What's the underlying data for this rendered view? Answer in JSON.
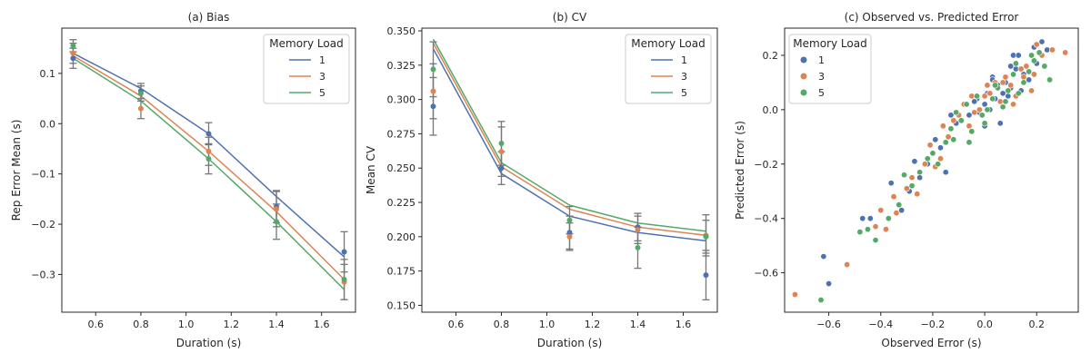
{
  "chart_data": [
    {
      "type": "line",
      "title": "(a) Bias",
      "xlabel": "Duration (s)",
      "ylabel": "Rep Error Mean (s)",
      "xlim": [
        0.45,
        1.75
      ],
      "ylim": [
        -0.375,
        0.19
      ],
      "xticks": [
        0.6,
        0.8,
        1.0,
        1.2,
        1.4,
        1.6
      ],
      "xtick_labels": [
        "0.6",
        "0.8",
        "1.0",
        "1.2",
        "1.4",
        "1.6"
      ],
      "yticks": [
        0.1,
        0.0,
        -0.1,
        -0.2,
        -0.3
      ],
      "ytick_labels": [
        "0.1",
        "0.0",
        "−0.1",
        "−0.2",
        "−0.3"
      ],
      "legend": {
        "title": "Memory Load",
        "position": "top-right"
      },
      "x": [
        0.5,
        0.8,
        1.1,
        1.4,
        1.7
      ],
      "series": [
        {
          "name": "1",
          "color": "#4c72b0",
          "fit": [
            0.14,
            0.07,
            -0.02,
            -0.145,
            -0.265
          ],
          "points": [
            0.13,
            0.065,
            -0.02,
            -0.165,
            -0.255
          ],
          "errors": [
            0.02,
            0.015,
            0.022,
            0.032,
            0.04
          ]
        },
        {
          "name": "3",
          "color": "#dd8452",
          "fit": [
            0.135,
            0.055,
            -0.055,
            -0.175,
            -0.31
          ],
          "points": [
            0.14,
            0.03,
            -0.055,
            -0.17,
            -0.315
          ],
          "errors": [
            0.02,
            0.02,
            0.028,
            0.035,
            0.035
          ]
        },
        {
          "name": "5",
          "color": "#55a868",
          "fit": [
            0.13,
            0.045,
            -0.07,
            -0.195,
            -0.33
          ],
          "points": [
            0.155,
            0.06,
            -0.07,
            -0.195,
            -0.31
          ],
          "errors": [
            0.012,
            0.015,
            0.03,
            0.035,
            0.04
          ]
        }
      ]
    },
    {
      "type": "line",
      "title": "(b) CV",
      "xlabel": "Duration (s)",
      "ylabel": "Mean CV",
      "xlim": [
        0.45,
        1.75
      ],
      "ylim": [
        0.145,
        0.352
      ],
      "xticks": [
        0.6,
        0.8,
        1.0,
        1.2,
        1.4,
        1.6
      ],
      "xtick_labels": [
        "0.6",
        "0.8",
        "1.0",
        "1.2",
        "1.4",
        "1.6"
      ],
      "yticks": [
        0.15,
        0.175,
        0.2,
        0.225,
        0.25,
        0.275,
        0.3,
        0.325,
        0.35
      ],
      "ytick_labels": [
        "0.150",
        "0.175",
        "0.200",
        "0.225",
        "0.250",
        "0.275",
        "0.300",
        "0.325",
        "0.350"
      ],
      "legend": {
        "title": "Memory Load",
        "position": "top-right"
      },
      "x": [
        0.5,
        0.8,
        1.1,
        1.4,
        1.7
      ],
      "series": [
        {
          "name": "1",
          "color": "#4c72b0",
          "fit": [
            0.337,
            0.246,
            0.215,
            0.203,
            0.197
          ],
          "points": [
            0.295,
            0.25,
            0.203,
            0.207,
            0.172
          ],
          "errors": [
            0.021,
            0.012,
            0.012,
            0.01,
            0.018
          ]
        },
        {
          "name": "3",
          "color": "#dd8452",
          "fit": [
            0.341,
            0.251,
            0.22,
            0.207,
            0.201
          ],
          "points": [
            0.306,
            0.262,
            0.2,
            0.205,
            0.201
          ],
          "errors": [
            0.02,
            0.018,
            0.01,
            0.01,
            0.015
          ]
        },
        {
          "name": "5",
          "color": "#55a868",
          "fit": [
            0.344,
            0.254,
            0.223,
            0.21,
            0.204
          ],
          "points": [
            0.322,
            0.268,
            0.212,
            0.192,
            0.2
          ],
          "errors": [
            0.02,
            0.016,
            0.01,
            0.015,
            0.012
          ]
        }
      ]
    },
    {
      "type": "scatter",
      "title": "(c) Observed vs. Predicted Error",
      "xlabel": "Observed Error (s)",
      "ylabel": "Predicted Error (s)",
      "xlim": [
        -0.77,
        0.36
      ],
      "ylim": [
        -0.745,
        0.3
      ],
      "xticks": [
        -0.6,
        -0.4,
        -0.2,
        0.0,
        0.2
      ],
      "xtick_labels": [
        "−0.6",
        "−0.4",
        "−0.2",
        "0.0",
        "0.2"
      ],
      "yticks": [
        -0.6,
        -0.4,
        -0.2,
        0.0,
        0.2
      ],
      "ytick_labels": [
        "−0.6",
        "−0.4",
        "−0.2",
        "0.0",
        "0.2"
      ],
      "legend": {
        "title": "Memory Load",
        "position": "top-left"
      },
      "series": [
        {
          "name": "1",
          "color": "#4c72b0",
          "x": [
            -0.62,
            -0.6,
            -0.44,
            -0.47,
            -0.32,
            -0.29,
            -0.36,
            -0.27,
            -0.22,
            -0.19,
            -0.17,
            -0.15,
            -0.11,
            -0.09,
            -0.06,
            -0.03,
            -0.02,
            0.0,
            0.01,
            0.02,
            0.03,
            0.04,
            0.05,
            0.06,
            0.07,
            0.08,
            0.1,
            0.11,
            0.12,
            0.15,
            0.17,
            0.2,
            0.22,
            0.24,
            0.1,
            0.05,
            -0.04,
            -0.13,
            0.14,
            0.19,
            -0.25,
            0.0,
            0.09,
            0.13,
            0.03
          ],
          "y": [
            -0.54,
            -0.64,
            -0.4,
            -0.4,
            -0.37,
            -0.3,
            -0.27,
            -0.19,
            -0.2,
            -0.11,
            -0.14,
            -0.23,
            -0.05,
            -0.04,
            -0.02,
            0.04,
            -0.01,
            0.02,
            0.06,
            0.0,
            0.12,
            0.04,
            0.08,
            -0.05,
            0.06,
            0.1,
            0.08,
            0.2,
            0.15,
            0.13,
            0.11,
            0.17,
            0.25,
            0.22,
            0.16,
            0.09,
            0.03,
            -0.02,
            0.07,
            0.23,
            -0.25,
            -0.06,
            0.05,
            0.2,
            0.11
          ]
        },
        {
          "name": "3",
          "color": "#dd8452",
          "x": [
            -0.73,
            -0.53,
            -0.42,
            -0.38,
            -0.34,
            -0.3,
            -0.26,
            -0.23,
            -0.19,
            -0.16,
            -0.14,
            -0.12,
            -0.1,
            -0.08,
            -0.06,
            -0.04,
            -0.02,
            0.0,
            0.02,
            0.04,
            0.06,
            0.08,
            0.1,
            0.12,
            0.14,
            0.16,
            0.18,
            0.2,
            0.22,
            0.26,
            0.31,
            -0.4,
            -0.35,
            -0.28,
            -0.21,
            -0.05,
            0.07,
            0.11,
            0.19,
            -0.17,
            0.01,
            0.15
          ],
          "y": [
            -0.68,
            -0.57,
            -0.43,
            -0.44,
            -0.38,
            -0.29,
            -0.31,
            -0.2,
            -0.21,
            -0.06,
            -0.1,
            -0.04,
            -0.02,
            0.02,
            -0.06,
            -0.01,
            0.0,
            0.05,
            0.06,
            0.1,
            0.03,
            0.12,
            0.09,
            0.05,
            0.15,
            0.16,
            0.07,
            0.24,
            0.2,
            0.22,
            0.21,
            -0.37,
            -0.32,
            -0.25,
            -0.13,
            0.05,
            0.1,
            0.02,
            0.13,
            -0.18,
            0.09,
            0.12
          ]
        },
        {
          "name": "5",
          "color": "#55a868",
          "x": [
            -0.63,
            -0.48,
            -0.42,
            -0.37,
            -0.33,
            -0.28,
            -0.25,
            -0.22,
            -0.18,
            -0.15,
            -0.13,
            -0.11,
            -0.09,
            -0.07,
            -0.05,
            -0.03,
            -0.01,
            0.01,
            0.03,
            0.05,
            0.07,
            0.09,
            0.11,
            0.13,
            0.15,
            0.17,
            0.19,
            0.21,
            0.23,
            0.25,
            -0.45,
            -0.31,
            -0.2,
            -0.12,
            0.0,
            0.08,
            0.12,
            -0.06,
            0.04,
            0.18
          ],
          "y": [
            -0.7,
            -0.45,
            -0.48,
            -0.4,
            -0.35,
            -0.28,
            -0.23,
            -0.18,
            -0.2,
            -0.12,
            -0.07,
            -0.01,
            -0.04,
            0.02,
            -0.08,
            0.05,
            -0.02,
            0.0,
            0.04,
            0.08,
            0.01,
            0.07,
            0.13,
            0.06,
            0.1,
            0.14,
            0.18,
            0.21,
            0.16,
            0.11,
            -0.44,
            -0.24,
            -0.16,
            -0.11,
            -0.05,
            0.03,
            0.17,
            -0.12,
            0.09,
            0.2
          ]
        }
      ]
    }
  ]
}
